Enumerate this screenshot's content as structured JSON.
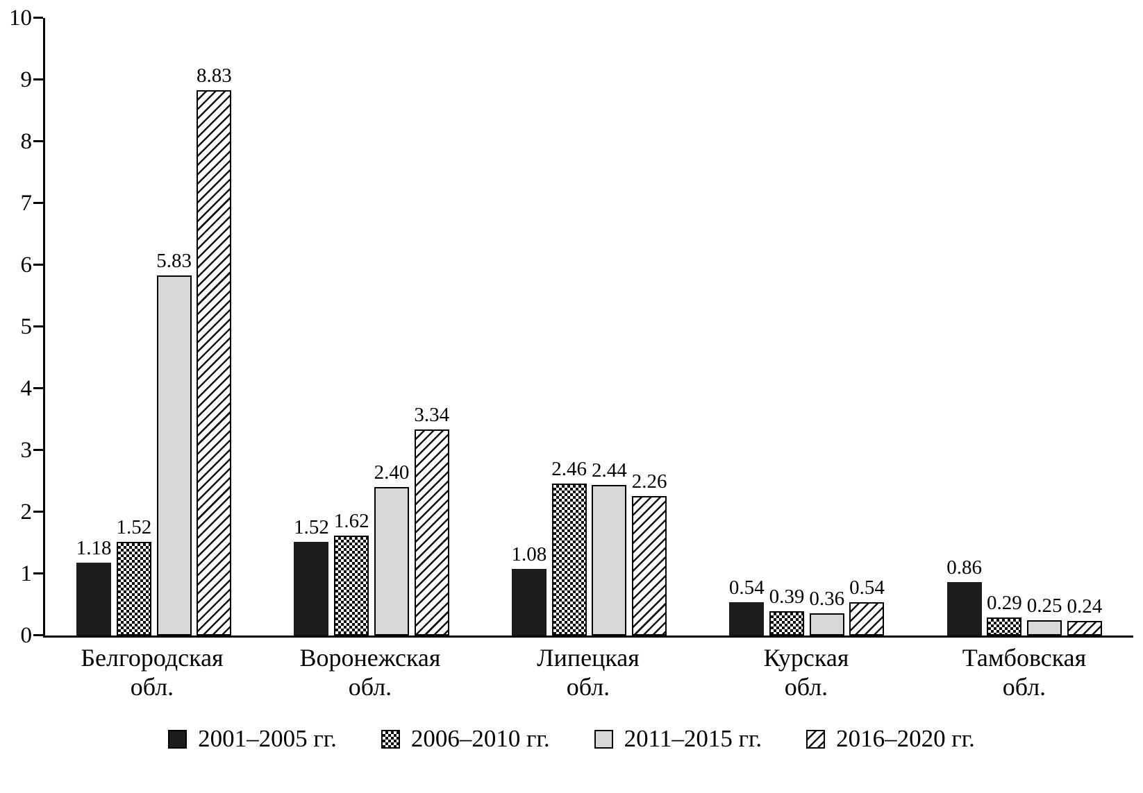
{
  "chart_data": {
    "type": "bar",
    "title": "",
    "xlabel": "",
    "ylabel": "",
    "ylim": [
      0,
      10
    ],
    "yticks": [
      0,
      1,
      2,
      3,
      4,
      5,
      6,
      7,
      8,
      9,
      10
    ],
    "grid": false,
    "legend_position": "bottom",
    "categories": [
      {
        "line1": "Белгородская",
        "line2": "обл."
      },
      {
        "line1": "Воронежская",
        "line2": "обл."
      },
      {
        "line1": "Липецкая",
        "line2": "обл."
      },
      {
        "line1": "Курская",
        "line2": "обл."
      },
      {
        "line1": "Тамбовская",
        "line2": "обл."
      }
    ],
    "series": [
      {
        "name": "2001–2005 гг.",
        "pattern": "solid-black",
        "values": [
          1.18,
          1.52,
          1.08,
          0.54,
          0.86
        ],
        "labels": [
          "1.18",
          "1.52",
          "1.08",
          "0.54",
          "0.86"
        ]
      },
      {
        "name": "2006–2010 гг.",
        "pattern": "checker-dots",
        "values": [
          1.52,
          1.62,
          2.46,
          0.39,
          0.29
        ],
        "labels": [
          "1.52",
          "1.62",
          "2.46",
          "0.39",
          "0.29"
        ]
      },
      {
        "name": "2011–2015 гг.",
        "pattern": "light-gray",
        "values": [
          5.83,
          2.4,
          2.44,
          0.36,
          0.25
        ],
        "labels": [
          "5.83",
          "2.40",
          "2.44",
          "0.36",
          "0.25"
        ]
      },
      {
        "name": "2016–2020 гг.",
        "pattern": "diagonal-hatch",
        "values": [
          8.83,
          3.34,
          2.26,
          0.54,
          0.24
        ],
        "labels": [
          "8.83",
          "3.34",
          "2.26",
          "0.54",
          "0.24"
        ]
      }
    ]
  }
}
